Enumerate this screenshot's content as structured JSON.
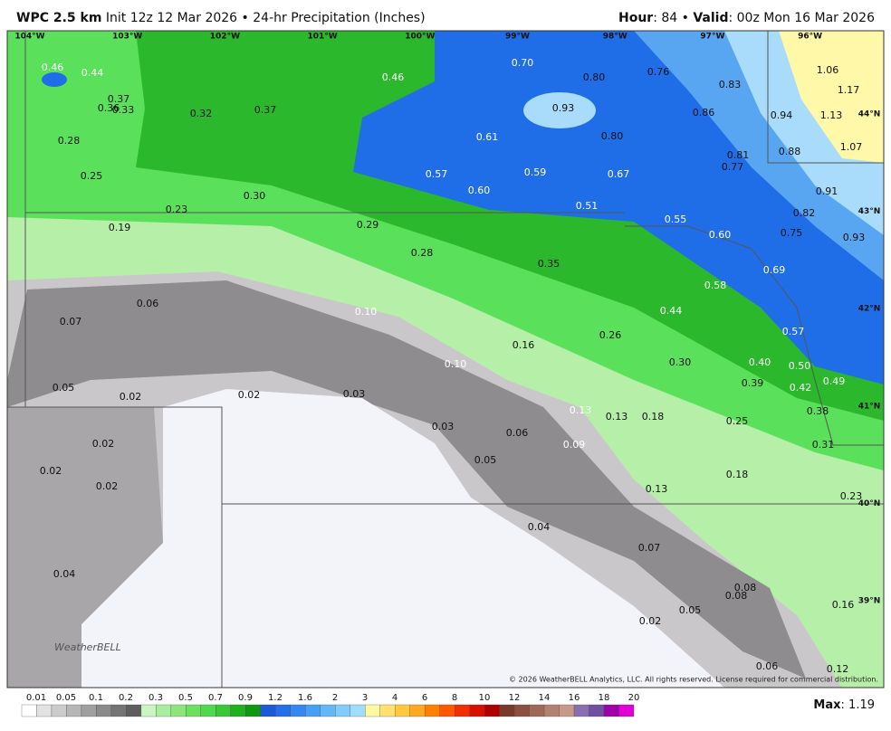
{
  "header": {
    "model": "WPC 2.5 km",
    "subtitle": "Init 12z 12 Mar 2026 • 24-hr Precipitation (Inches)",
    "hour_label": "Hour",
    "hour_value": ": 84 • ",
    "valid_label": "Valid",
    "valid_value": ": 00z Mon 16 Mar 2026"
  },
  "map": {
    "longitudes": [
      "104°W",
      "103°W",
      "102°W",
      "101°W",
      "100°W",
      "99°W",
      "98°W",
      "97°W",
      "96°W"
    ],
    "latitudes": [
      "44°N",
      "43°N",
      "42°N",
      "41°N",
      "40°N",
      "39°N"
    ],
    "labels": [
      "0.46",
      "0.44",
      "0.37",
      "0.36",
      "0.33",
      "0.32",
      "0.37",
      "0.46",
      "0.70",
      "0.80",
      "0.76",
      "0.83",
      "1.06",
      "1.17",
      "0.93",
      "0.86",
      "0.94",
      "1.13",
      "0.28",
      "0.61",
      "0.80",
      "0.88",
      "1.07",
      "0.81",
      "0.77",
      "0.25",
      "0.57",
      "0.59",
      "0.67",
      "0.60",
      "0.91",
      "0.30",
      "0.23",
      "0.51",
      "0.82",
      "0.55",
      "0.19",
      "0.29",
      "0.75",
      "0.93",
      "0.60",
      "0.28",
      "0.35",
      "0.69",
      "0.58",
      "0.06",
      "0.10",
      "0.44",
      "0.07",
      "0.57",
      "0.16",
      "0.26",
      "0.10",
      "0.30",
      "0.40",
      "0.50",
      "0.05",
      "0.39",
      "0.42",
      "0.49",
      "0.02",
      "0.02",
      "0.03",
      "0.13",
      "0.13",
      "0.18",
      "0.38",
      "0.25",
      "0.03",
      "0.06",
      "0.09",
      "0.31",
      "0.02",
      "0.05",
      "0.02",
      "0.18",
      "0.02",
      "0.13",
      "0.23",
      "0.04",
      "0.07",
      "0.04",
      "0.08",
      "0.08",
      "0.16",
      "0.05",
      "0.02",
      "0.06",
      "0.12"
    ]
  },
  "credit": "© 2026 WeatherBELL Analytics, LLC. All rights reserved. License required for commercial distribution.",
  "logo": "WeatherBELL",
  "colorbar": {
    "labels": [
      "0.01",
      "0.05",
      "0.1",
      "0.2",
      "0.3",
      "0.5",
      "0.7",
      "0.9",
      "1.2",
      "1.6",
      "2",
      "3",
      "4",
      "6",
      "8",
      "10",
      "12",
      "14",
      "16",
      "18",
      "20"
    ]
  },
  "max": {
    "label": "Max",
    "value": ": 1.19"
  }
}
